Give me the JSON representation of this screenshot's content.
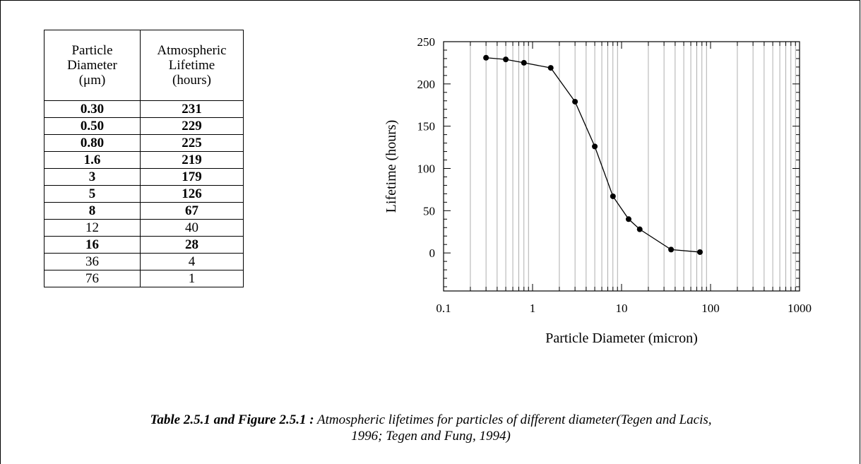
{
  "table": {
    "headers": [
      [
        "Particle",
        "Diameter",
        "(μm)"
      ],
      [
        "Atmospheric",
        "Lifetime",
        "(hours)"
      ]
    ],
    "rows": [
      {
        "d": "0.30",
        "t": "231",
        "bold": true
      },
      {
        "d": "0.50",
        "t": "229",
        "bold": true
      },
      {
        "d": "0.80",
        "t": "225",
        "bold": true
      },
      {
        "d": "1.6",
        "t": "219",
        "bold": true
      },
      {
        "d": "3",
        "t": "179",
        "bold": true
      },
      {
        "d": "5",
        "t": "126",
        "bold": true
      },
      {
        "d": "8",
        "t": "67",
        "bold": true
      },
      {
        "d": "12",
        "t": "40",
        "bold": false
      },
      {
        "d": "16",
        "t": "28",
        "bold": true
      },
      {
        "d": "36",
        "t": "4",
        "bold": false
      },
      {
        "d": "76",
        "t": "1",
        "bold": false
      }
    ]
  },
  "chart_data": {
    "type": "line",
    "title": "",
    "xlabel": "Particle Diameter (micron)",
    "ylabel": "Lifetime (hours)",
    "xscale": "log",
    "xlim": [
      0.1,
      1000
    ],
    "ylim": [
      -45,
      250
    ],
    "xticks": [
      0.1,
      1,
      10,
      100,
      1000
    ],
    "xtick_labels": [
      "0.1",
      "1",
      "10",
      "100",
      "1000"
    ],
    "yticks": [
      0,
      50,
      100,
      150,
      200,
      250
    ],
    "ytick_labels": [
      "0",
      "50",
      "100",
      "150",
      "200",
      "250"
    ],
    "grid": "vertical log gridlines",
    "series": [
      {
        "x": [
          0.3,
          0.5,
          0.8,
          1.6,
          3,
          5,
          8,
          12,
          16,
          36,
          76
        ],
        "y": [
          231,
          229,
          225,
          219,
          179,
          126,
          67,
          40,
          28,
          4,
          1
        ]
      }
    ]
  },
  "caption": {
    "label": "Table 2.5.1 and Figure 2.5.1 :",
    "line1": " Atmospheric lifetimes for particles of different diameter(Tegen and Lacis,",
    "line2": "1996; Tegen and Fung, 1994)"
  }
}
